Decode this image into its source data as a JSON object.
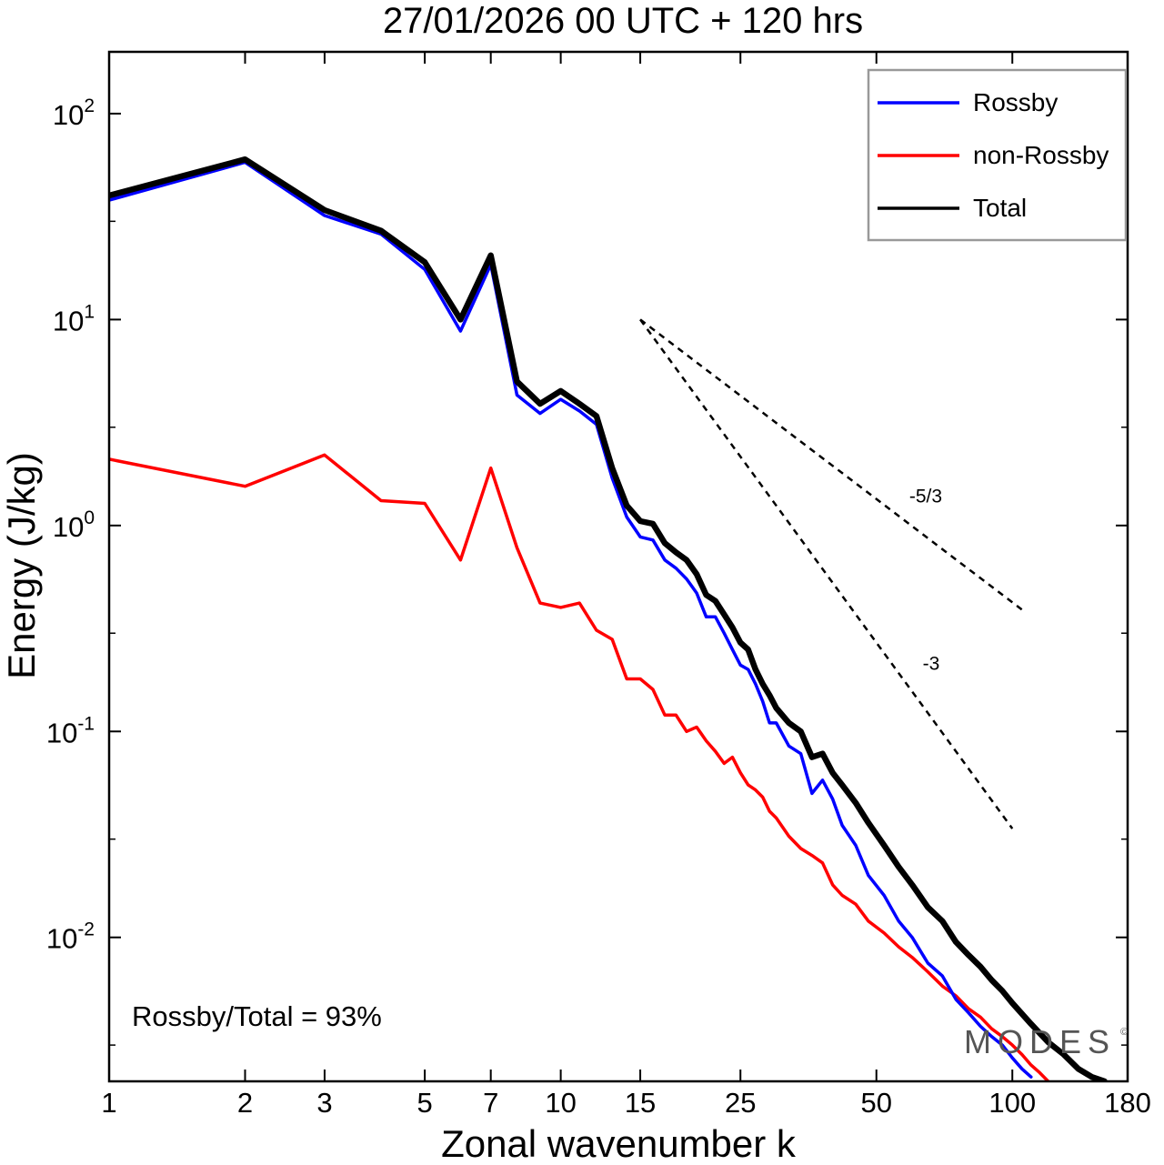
{
  "chart_data": {
    "type": "line",
    "title": "27/01/2026  00 UTC  + 120 hrs",
    "xlabel": "Zonal wavenumber k",
    "ylabel": "Energy (J/kg)",
    "xscale": "log",
    "yscale": "log",
    "xlim": [
      1,
      180
    ],
    "ylim": [
      0.002,
      200
    ],
    "x_ticks": [
      1,
      2,
      3,
      5,
      7,
      10,
      15,
      25,
      50,
      100,
      180
    ],
    "x_tick_labels": [
      "1",
      "2",
      "3",
      "5",
      "7",
      "10",
      "15",
      "25",
      "50",
      "100",
      "180"
    ],
    "y_ticks": [
      {
        "value": 100,
        "base": "10",
        "exp": "2"
      },
      {
        "value": 10,
        "base": "10",
        "exp": "1"
      },
      {
        "value": 1,
        "base": "10",
        "exp": "0"
      },
      {
        "value": 0.1,
        "base": "10",
        "exp": "-1"
      },
      {
        "value": 0.01,
        "base": "10",
        "exp": "-2"
      }
    ],
    "legend": {
      "position": "top-right",
      "entries": [
        "Rossby",
        "non-Rossby",
        "Total"
      ]
    },
    "colors": {
      "Rossby": "#0000ff",
      "non-Rossby": "#ff0000",
      "Total": "#000000"
    },
    "series": [
      {
        "name": "Rossby",
        "x": [
          1,
          2,
          3,
          4,
          5,
          6,
          7,
          8,
          9,
          10,
          11,
          12,
          13,
          14,
          15,
          16,
          17,
          18,
          19,
          20,
          21,
          22,
          23,
          24,
          25,
          26,
          27,
          28,
          29,
          30,
          32,
          34,
          36,
          38,
          40,
          42,
          45,
          48,
          52,
          56,
          60,
          65,
          70,
          75,
          80,
          85,
          90,
          95,
          100,
          105,
          110
        ],
        "values": [
          38.0,
          58.0,
          32.0,
          26.0,
          17.5,
          8.8,
          18.5,
          4.3,
          3.5,
          4.1,
          3.6,
          3.1,
          1.7,
          1.1,
          0.88,
          0.85,
          0.68,
          0.62,
          0.55,
          0.47,
          0.36,
          0.36,
          0.3,
          0.25,
          0.21,
          0.2,
          0.17,
          0.14,
          0.11,
          0.11,
          0.085,
          0.078,
          0.05,
          0.058,
          0.047,
          0.035,
          0.028,
          0.02,
          0.016,
          0.012,
          0.01,
          0.0075,
          0.0065,
          0.005,
          0.0043,
          0.0037,
          0.0033,
          0.003,
          0.0026,
          0.0023,
          0.0021
        ]
      },
      {
        "name": "non-Rossby",
        "x": [
          1,
          2,
          3,
          4,
          5,
          6,
          7,
          8,
          9,
          10,
          11,
          12,
          13,
          14,
          15,
          16,
          17,
          18,
          19,
          20,
          21,
          22,
          23,
          24,
          25,
          26,
          27,
          28,
          29,
          30,
          32,
          34,
          36,
          38,
          40,
          42,
          45,
          48,
          52,
          56,
          60,
          65,
          70,
          75,
          80,
          85,
          90,
          95,
          100,
          105,
          110,
          115,
          120
        ],
        "values": [
          2.1,
          1.55,
          2.2,
          1.32,
          1.28,
          0.68,
          1.9,
          0.78,
          0.42,
          0.4,
          0.42,
          0.31,
          0.28,
          0.18,
          0.18,
          0.16,
          0.12,
          0.12,
          0.1,
          0.105,
          0.09,
          0.08,
          0.07,
          0.075,
          0.063,
          0.055,
          0.052,
          0.048,
          0.041,
          0.038,
          0.031,
          0.027,
          0.025,
          0.023,
          0.018,
          0.016,
          0.0145,
          0.012,
          0.0105,
          0.009,
          0.008,
          0.0068,
          0.0058,
          0.0052,
          0.0045,
          0.0041,
          0.0036,
          0.0033,
          0.003,
          0.0027,
          0.0024,
          0.0022,
          0.002
        ]
      },
      {
        "name": "Total",
        "x": [
          1,
          2,
          3,
          4,
          5,
          6,
          7,
          8,
          9,
          10,
          11,
          12,
          13,
          14,
          15,
          16,
          17,
          18,
          19,
          20,
          21,
          22,
          23,
          24,
          25,
          26,
          27,
          28,
          29,
          30,
          32,
          34,
          36,
          38,
          40,
          42,
          45,
          48,
          52,
          56,
          60,
          65,
          70,
          75,
          80,
          85,
          90,
          95,
          100,
          110,
          120,
          130,
          140,
          150,
          160
        ],
        "values": [
          40.0,
          60.0,
          34.0,
          27.0,
          19.0,
          10.0,
          20.5,
          5.0,
          3.9,
          4.5,
          3.9,
          3.4,
          1.9,
          1.25,
          1.05,
          1.02,
          0.82,
          0.74,
          0.68,
          0.58,
          0.46,
          0.43,
          0.37,
          0.32,
          0.27,
          0.25,
          0.2,
          0.17,
          0.15,
          0.13,
          0.11,
          0.1,
          0.075,
          0.078,
          0.063,
          0.055,
          0.045,
          0.036,
          0.028,
          0.022,
          0.018,
          0.014,
          0.012,
          0.0095,
          0.0082,
          0.0072,
          0.0062,
          0.0055,
          0.0048,
          0.0038,
          0.0031,
          0.0027,
          0.0023,
          0.0021,
          0.002
        ]
      }
    ],
    "reference_lines": [
      {
        "label": "-5/3",
        "slope": -1.6667,
        "x_start": 15,
        "x_end": 105,
        "y_start": 10
      },
      {
        "label": "-3",
        "slope": -3,
        "x_start": 15,
        "x_end": 100,
        "y_start": 10
      }
    ],
    "annotation": "Rossby/Total = 93%",
    "watermark": "MODES"
  }
}
